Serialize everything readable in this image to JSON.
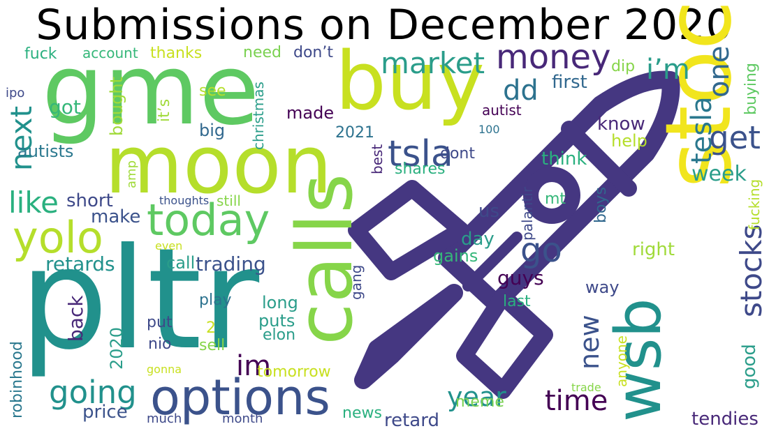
{
  "title": "Submissions on December 2020",
  "rocket_color": "#453781",
  "rocket_icon": "rocket-icon",
  "words": [
    {
      "text": "gme",
      "color": "#5ec962"
    },
    {
      "text": "pltr",
      "color": "#21918c"
    },
    {
      "text": "moon",
      "color": "#b5de2b"
    },
    {
      "text": "buy",
      "color": "#c8e020"
    },
    {
      "text": "stock",
      "color": "#f1e51d"
    },
    {
      "text": "calls",
      "color": "#86d549"
    },
    {
      "text": "wsb",
      "color": "#21918c"
    },
    {
      "text": "options",
      "color": "#3b528b"
    },
    {
      "text": "today",
      "color": "#5ec962"
    },
    {
      "text": "yolo",
      "color": "#b5de2b"
    },
    {
      "text": "money",
      "color": "#482878"
    },
    {
      "text": "market",
      "color": "#2a9d8a"
    },
    {
      "text": "tsla",
      "color": "#3b528b"
    },
    {
      "text": "get",
      "color": "#3b528b"
    },
    {
      "text": "tesla",
      "color": "#2a788e"
    },
    {
      "text": "one",
      "color": "#31688e"
    },
    {
      "text": "i’m",
      "color": "#2a9d8a"
    },
    {
      "text": "dd",
      "color": "#2c728e"
    },
    {
      "text": "next",
      "color": "#21918c"
    },
    {
      "text": "like",
      "color": "#2ab07f"
    },
    {
      "text": "going",
      "color": "#21918c"
    },
    {
      "text": "go",
      "color": "#3b528b"
    },
    {
      "text": "time",
      "color": "#440154"
    },
    {
      "text": "new",
      "color": "#3b528b"
    },
    {
      "text": "year",
      "color": "#21918c"
    },
    {
      "text": "stocks",
      "color": "#3e4989"
    },
    {
      "text": "week",
      "color": "#2a9d8a"
    },
    {
      "text": "retards",
      "color": "#21918c"
    },
    {
      "text": "trading",
      "color": "#3b528b"
    },
    {
      "text": "short",
      "color": "#3e4989"
    },
    {
      "text": "make",
      "color": "#3b528b"
    },
    {
      "text": "first",
      "color": "#31688e"
    },
    {
      "text": "got",
      "color": "#35b779"
    },
    {
      "text": "fuck",
      "color": "#2ab07f"
    },
    {
      "text": "account",
      "color": "#35b779"
    },
    {
      "text": "thanks",
      "color": "#c8e020"
    },
    {
      "text": "need",
      "color": "#7ad151"
    },
    {
      "text": "don’t",
      "color": "#3e4989"
    },
    {
      "text": "see",
      "color": "#b5de2b"
    },
    {
      "text": "bought",
      "color": "#a0da39"
    },
    {
      "text": "it’s",
      "color": "#a0da39"
    },
    {
      "text": "christmas",
      "color": "#2a9d8a"
    },
    {
      "text": "big",
      "color": "#31688e"
    },
    {
      "text": "made",
      "color": "#440154"
    },
    {
      "text": "autists",
      "color": "#2a788e"
    },
    {
      "text": "2021",
      "color": "#2c728e"
    },
    {
      "text": "best",
      "color": "#482878"
    },
    {
      "text": "dont",
      "color": "#3e4989"
    },
    {
      "text": "shares",
      "color": "#2ab07f"
    },
    {
      "text": "ipo",
      "color": "#3e4989"
    },
    {
      "text": "dip",
      "color": "#86d549"
    },
    {
      "text": "buying",
      "color": "#5ec962"
    },
    {
      "text": "autist",
      "color": "#440154"
    },
    {
      "text": "100",
      "color": "#2c728e"
    },
    {
      "text": "know",
      "color": "#482878"
    },
    {
      "text": "help",
      "color": "#b5de2b"
    },
    {
      "text": "think",
      "color": "#2ab07f"
    },
    {
      "text": "amp",
      "color": "#a0da39"
    },
    {
      "text": "thoughts",
      "color": "#3b528b"
    },
    {
      "text": "still",
      "color": "#86d549"
    },
    {
      "text": "palantir",
      "color": "#3e4989"
    },
    {
      "text": "mt",
      "color": "#35b779"
    },
    {
      "text": "boys",
      "color": "#31688e"
    },
    {
      "text": "fucking",
      "color": "#b5de2b"
    },
    {
      "text": "us",
      "color": "#3e4989"
    },
    {
      "text": "day",
      "color": "#2a9d8a"
    },
    {
      "text": "right",
      "color": "#a0da39"
    },
    {
      "text": "gains",
      "color": "#35b779"
    },
    {
      "text": "even",
      "color": "#c8e020"
    },
    {
      "text": "call",
      "color": "#2a9d8a"
    },
    {
      "text": "guys",
      "color": "#440154"
    },
    {
      "text": "way",
      "color": "#3e4989"
    },
    {
      "text": "play",
      "color": "#2c728e"
    },
    {
      "text": "long",
      "color": "#2a9d8a"
    },
    {
      "text": "back",
      "color": "#482878"
    },
    {
      "text": "gang",
      "color": "#3e4989"
    },
    {
      "text": "last",
      "color": "#2ab07f"
    },
    {
      "text": "put",
      "color": "#3e4989"
    },
    {
      "text": "2",
      "color": "#c8e020"
    },
    {
      "text": "puts",
      "color": "#2a9d8a"
    },
    {
      "text": "nio",
      "color": "#3e4989"
    },
    {
      "text": "sell",
      "color": "#86d549"
    },
    {
      "text": "elon",
      "color": "#2a9d8a"
    },
    {
      "text": "im",
      "color": "#440154"
    },
    {
      "text": "2020",
      "color": "#2a9d8a"
    },
    {
      "text": "anyone",
      "color": "#c8e020"
    },
    {
      "text": "good",
      "color": "#2a9d8a"
    },
    {
      "text": "tomorrow",
      "color": "#c8e020"
    },
    {
      "text": "robinhood",
      "color": "#2a788e"
    },
    {
      "text": "gonna",
      "color": "#c8e020"
    },
    {
      "text": "price",
      "color": "#3b528b"
    },
    {
      "text": "much",
      "color": "#3e4989"
    },
    {
      "text": "month",
      "color": "#3e4989"
    },
    {
      "text": "news",
      "color": "#2ab07f"
    },
    {
      "text": "retard",
      "color": "#3e4989"
    },
    {
      "text": "meme",
      "color": "#7ad151"
    },
    {
      "text": "trade",
      "color": "#86d549"
    },
    {
      "text": "tendies",
      "color": "#482878"
    }
  ]
}
